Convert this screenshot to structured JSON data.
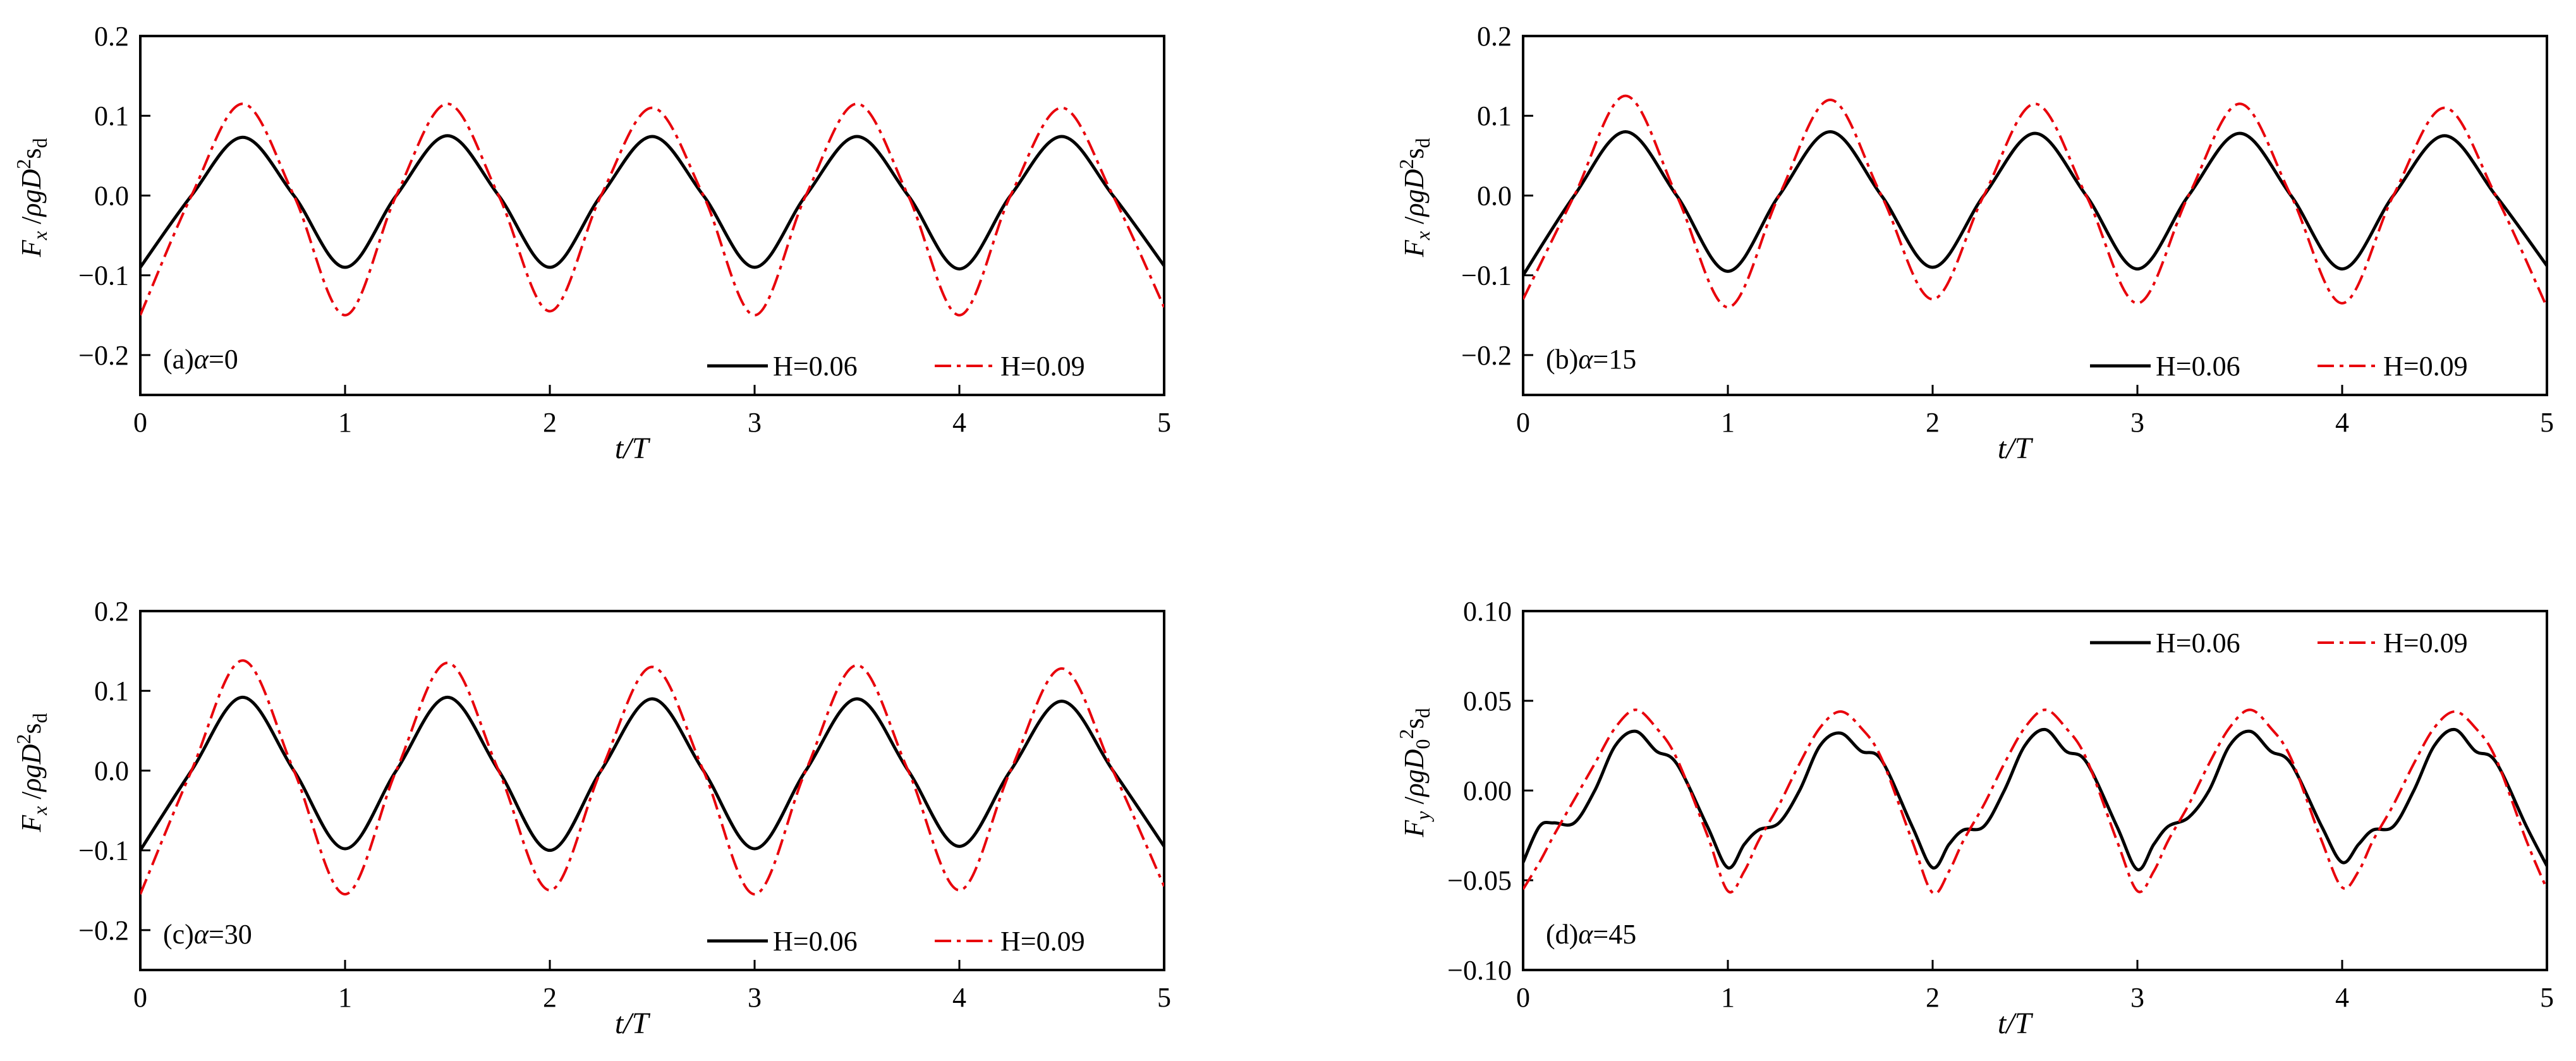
{
  "colors": {
    "series_1": "#000000",
    "series_2": "#e8000b",
    "axes": "#000000"
  },
  "chart_data": [
    {
      "type": "line",
      "panel_label": "(a)α=0",
      "xlabel": "t/T",
      "ylabel": "F_x /ρgD²s_d",
      "xlim": [
        0,
        5
      ],
      "ylim": [
        -0.25,
        0.2
      ],
      "xticks": [
        0,
        1,
        2,
        3,
        4,
        5
      ],
      "yticks": [
        -0.2,
        -0.1,
        0.0,
        0.1,
        0.2
      ],
      "legend_position": "bottom-right",
      "series": [
        {
          "name": "H=0.06",
          "style": "solid",
          "x": [
            0.0,
            0.25,
            0.5,
            0.75,
            1.0,
            1.25,
            1.5,
            1.75,
            2.0,
            2.25,
            2.5,
            2.75,
            3.0,
            3.25,
            3.5,
            3.75,
            4.0,
            4.25,
            4.5,
            4.75,
            5.0
          ],
          "y": [
            -0.09,
            0.0,
            0.073,
            0.0,
            -0.09,
            0.0,
            0.075,
            0.0,
            -0.09,
            0.0,
            0.074,
            0.0,
            -0.09,
            0.0,
            0.074,
            0.0,
            -0.092,
            0.0,
            0.074,
            0.0,
            -0.088
          ]
        },
        {
          "name": "H=0.09",
          "style": "dashdot",
          "x": [
            0.0,
            0.25,
            0.5,
            0.75,
            1.0,
            1.25,
            1.5,
            1.75,
            2.0,
            2.25,
            2.5,
            2.75,
            3.0,
            3.25,
            3.5,
            3.75,
            4.0,
            4.25,
            4.5,
            4.75,
            5.0
          ],
          "y": [
            -0.15,
            0.0,
            0.115,
            0.0,
            -0.15,
            0.0,
            0.115,
            0.0,
            -0.145,
            0.0,
            0.11,
            0.0,
            -0.15,
            0.0,
            0.115,
            0.0,
            -0.15,
            0.0,
            0.11,
            0.0,
            -0.14
          ]
        }
      ]
    },
    {
      "type": "line",
      "panel_label": "(b)α=15",
      "xlabel": "t/T",
      "ylabel": "F_x /ρgD²s_d",
      "xlim": [
        0,
        5
      ],
      "ylim": [
        -0.25,
        0.2
      ],
      "xticks": [
        0,
        1,
        2,
        3,
        4,
        5
      ],
      "yticks": [
        -0.2,
        -0.1,
        0.0,
        0.1,
        0.2
      ],
      "legend_position": "bottom-right",
      "series": [
        {
          "name": "H=0.06",
          "style": "solid",
          "x": [
            0.0,
            0.25,
            0.5,
            0.75,
            1.0,
            1.25,
            1.5,
            1.75,
            2.0,
            2.25,
            2.5,
            2.75,
            3.0,
            3.25,
            3.5,
            3.75,
            4.0,
            4.25,
            4.5,
            4.75,
            5.0
          ],
          "y": [
            -0.1,
            0.0,
            0.08,
            0.0,
            -0.095,
            0.0,
            0.08,
            0.0,
            -0.09,
            0.0,
            0.078,
            0.0,
            -0.092,
            0.0,
            0.078,
            0.0,
            -0.092,
            0.0,
            0.075,
            0.0,
            -0.088
          ]
        },
        {
          "name": "H=0.09",
          "style": "dashdot",
          "x": [
            0.0,
            0.25,
            0.5,
            0.75,
            1.0,
            1.25,
            1.5,
            1.75,
            2.0,
            2.25,
            2.5,
            2.75,
            3.0,
            3.25,
            3.5,
            3.75,
            4.0,
            4.25,
            4.5,
            4.75,
            5.0
          ],
          "y": [
            -0.13,
            0.0,
            0.125,
            0.0,
            -0.14,
            0.0,
            0.12,
            0.0,
            -0.13,
            0.0,
            0.115,
            0.0,
            -0.135,
            0.0,
            0.115,
            0.0,
            -0.135,
            0.0,
            0.11,
            0.0,
            -0.14
          ]
        }
      ]
    },
    {
      "type": "line",
      "panel_label": "(c)α=30",
      "xlabel": "t/T",
      "ylabel": "F_x /ρgD²s_d",
      "xlim": [
        0,
        5
      ],
      "ylim": [
        -0.25,
        0.2
      ],
      "xticks": [
        0,
        1,
        2,
        3,
        4,
        5
      ],
      "yticks": [
        -0.2,
        -0.1,
        0.0,
        0.1,
        0.2
      ],
      "legend_position": "bottom-right",
      "series": [
        {
          "name": "H=0.06",
          "style": "solid",
          "x": [
            0.0,
            0.25,
            0.5,
            0.75,
            1.0,
            1.25,
            1.5,
            1.75,
            2.0,
            2.25,
            2.5,
            2.75,
            3.0,
            3.25,
            3.5,
            3.75,
            4.0,
            4.25,
            4.5,
            4.75,
            5.0
          ],
          "y": [
            -0.1,
            0.0,
            0.092,
            0.0,
            -0.098,
            0.0,
            0.092,
            0.0,
            -0.1,
            0.0,
            0.09,
            0.0,
            -0.098,
            0.0,
            0.09,
            0.0,
            -0.095,
            0.0,
            0.087,
            0.0,
            -0.095
          ]
        },
        {
          "name": "H=0.09",
          "style": "dashdot",
          "x": [
            0.0,
            0.25,
            0.5,
            0.75,
            1.0,
            1.25,
            1.5,
            1.75,
            2.0,
            2.25,
            2.5,
            2.75,
            3.0,
            3.25,
            3.5,
            3.75,
            4.0,
            4.25,
            4.5,
            4.75,
            5.0
          ],
          "y": [
            -0.155,
            0.0,
            0.138,
            0.0,
            -0.155,
            0.0,
            0.135,
            0.0,
            -0.15,
            0.0,
            0.13,
            0.0,
            -0.155,
            0.0,
            0.132,
            0.0,
            -0.15,
            0.0,
            0.128,
            0.0,
            -0.145
          ]
        }
      ]
    },
    {
      "type": "line",
      "panel_label": "(d)α=45",
      "xlabel": "t/T",
      "ylabel": "F_y /ρgD_0²s_d",
      "xlim": [
        0,
        5
      ],
      "ylim": [
        -0.1,
        0.1
      ],
      "xticks": [
        0,
        1,
        2,
        3,
        4,
        5
      ],
      "yticks": [
        -0.1,
        -0.05,
        0.0,
        0.05,
        0.1
      ],
      "legend_position": "top-right",
      "series": [
        {
          "name": "H=0.06",
          "style": "solid",
          "x": [
            0.0,
            0.08,
            0.15,
            0.25,
            0.35,
            0.45,
            0.55,
            0.65,
            0.75,
            0.9,
            1.0,
            1.08,
            1.15,
            1.25,
            1.35,
            1.45,
            1.55,
            1.65,
            1.75,
            1.9,
            2.0,
            2.08,
            2.15,
            2.25,
            2.35,
            2.45,
            2.55,
            2.65,
            2.75,
            2.9,
            3.0,
            3.08,
            3.15,
            3.25,
            3.35,
            3.45,
            3.55,
            3.65,
            3.75,
            3.9,
            4.0,
            4.08,
            4.15,
            4.25,
            4.35,
            4.45,
            4.55,
            4.65,
            4.75,
            4.9,
            5.0
          ],
          "y": [
            -0.04,
            -0.02,
            -0.018,
            -0.018,
            0.0,
            0.025,
            0.033,
            0.022,
            0.015,
            -0.02,
            -0.043,
            -0.03,
            -0.022,
            -0.018,
            0.0,
            0.025,
            0.032,
            0.022,
            0.017,
            -0.02,
            -0.043,
            -0.03,
            -0.022,
            -0.02,
            0.0,
            0.025,
            0.034,
            0.022,
            0.016,
            -0.02,
            -0.044,
            -0.03,
            -0.02,
            -0.015,
            0.0,
            0.025,
            0.033,
            0.022,
            0.015,
            -0.02,
            -0.04,
            -0.03,
            -0.022,
            -0.02,
            0.0,
            0.025,
            0.034,
            0.022,
            0.016,
            -0.02,
            -0.042
          ]
        },
        {
          "name": "H=0.09",
          "style": "dashdot",
          "x": [
            0.0,
            0.08,
            0.15,
            0.25,
            0.35,
            0.45,
            0.55,
            0.65,
            0.75,
            0.9,
            1.0,
            1.08,
            1.15,
            1.25,
            1.35,
            1.45,
            1.55,
            1.65,
            1.75,
            1.9,
            2.0,
            2.08,
            2.15,
            2.25,
            2.35,
            2.45,
            2.55,
            2.65,
            2.75,
            2.9,
            3.0,
            3.08,
            3.15,
            3.25,
            3.35,
            3.45,
            3.55,
            3.65,
            3.75,
            3.9,
            4.0,
            4.08,
            4.15,
            4.25,
            4.35,
            4.45,
            4.55,
            4.65,
            4.75,
            4.9,
            5.0
          ],
          "y": [
            -0.055,
            -0.04,
            -0.025,
            -0.005,
            0.015,
            0.035,
            0.045,
            0.035,
            0.018,
            -0.025,
            -0.056,
            -0.045,
            -0.028,
            -0.008,
            0.015,
            0.035,
            0.044,
            0.035,
            0.018,
            -0.028,
            -0.057,
            -0.045,
            -0.028,
            -0.008,
            0.015,
            0.035,
            0.045,
            0.035,
            0.018,
            -0.028,
            -0.056,
            -0.045,
            -0.028,
            -0.008,
            0.015,
            0.035,
            0.045,
            0.035,
            0.018,
            -0.028,
            -0.054,
            -0.045,
            -0.028,
            -0.008,
            0.015,
            0.035,
            0.044,
            0.035,
            0.018,
            -0.028,
            -0.055
          ]
        }
      ]
    }
  ]
}
